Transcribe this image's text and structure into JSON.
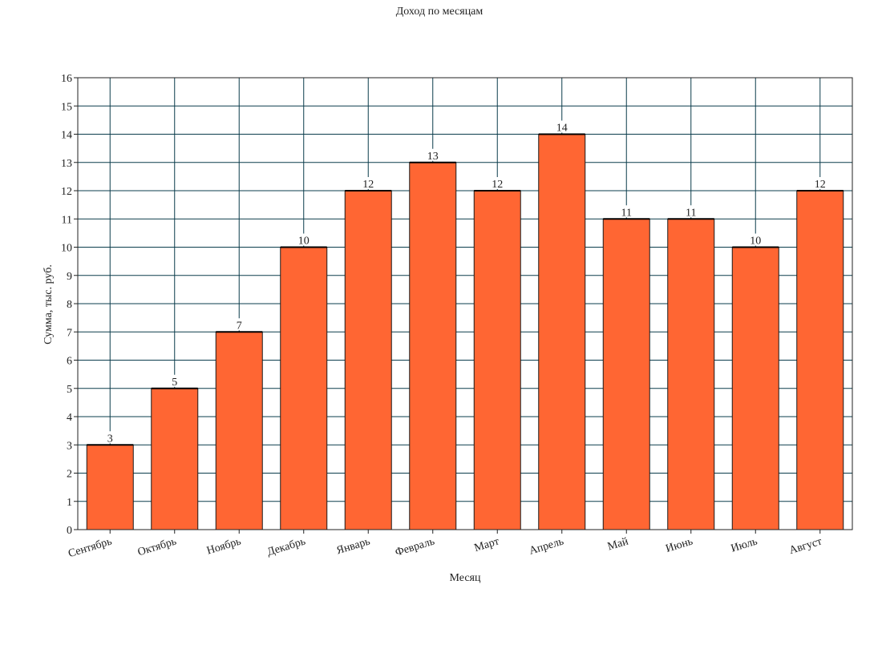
{
  "chart_data": {
    "type": "bar",
    "title": "Доход по месяцам",
    "xlabel": "Месяц",
    "ylabel": "Сумма, тыс. руб.",
    "categories": [
      "Сентябрь",
      "Октябрь",
      "Ноябрь",
      "Декабрь",
      "Январь",
      "Февраль",
      "Март",
      "Апрель",
      "Май",
      "Июнь",
      "Июль",
      "Август"
    ],
    "values": [
      3,
      5,
      7,
      10,
      12,
      13,
      12,
      14,
      11,
      11,
      10,
      12
    ],
    "ylim": [
      0,
      16
    ],
    "yticks": [
      0,
      1,
      2,
      3,
      4,
      5,
      6,
      7,
      8,
      9,
      10,
      11,
      12,
      13,
      14,
      15,
      16
    ],
    "grid": true,
    "legend": "none",
    "data_labels": true,
    "bar_color": "#ff6633",
    "grid_color": "#0b3d4c"
  }
}
